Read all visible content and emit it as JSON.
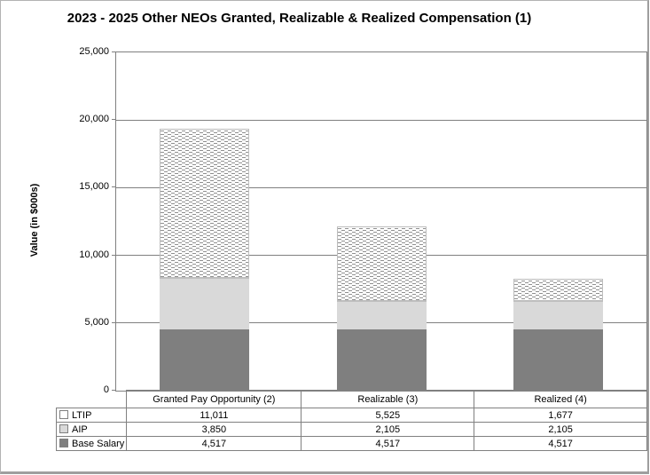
{
  "title": "2023 - 2025 Other NEOs Granted, Realizable & Realized Compensation (1)",
  "chart_data": {
    "type": "bar",
    "stacked": true,
    "title": "2023 - 2025 Other NEOs Granted, Realizable & Realized Compensation (1)",
    "xlabel": "",
    "ylabel": "Value (in $000s)",
    "ylim": [
      0,
      25000
    ],
    "grid": true,
    "legend_position": "table-left",
    "yticks": [
      {
        "v": 25000,
        "label": "25,000"
      },
      {
        "v": 20000,
        "label": "20,000"
      },
      {
        "v": 15000,
        "label": "15,000"
      },
      {
        "v": 10000,
        "label": "10,000"
      },
      {
        "v": 5000,
        "label": "5,000"
      },
      {
        "v": 0,
        "label": "0"
      }
    ],
    "categories": [
      "Granted Pay Opportunity (2)",
      "Realizable (3)",
      "Realized (4)"
    ],
    "series": [
      {
        "name": "LTIP",
        "key": "ltip",
        "pattern": "horizontal-dashes",
        "values": [
          11011,
          5525,
          1677
        ],
        "display": [
          "11,011",
          "5,525",
          "1,677"
        ]
      },
      {
        "name": "AIP",
        "key": "aip",
        "pattern": "solid",
        "values": [
          3850,
          2105,
          2105
        ],
        "display": [
          "3,850",
          "2,105",
          "2,105"
        ]
      },
      {
        "name": "Base Salary",
        "key": "base",
        "pattern": "solid",
        "values": [
          4517,
          4517,
          4517
        ],
        "display": [
          "4,517",
          "4,517",
          "4,517"
        ]
      }
    ]
  },
  "colors": {
    "base_salary": "#7f7f7f",
    "aip": "#d9d9d9",
    "ltip_dash": "#8f8f8f",
    "grid": "#808080"
  }
}
